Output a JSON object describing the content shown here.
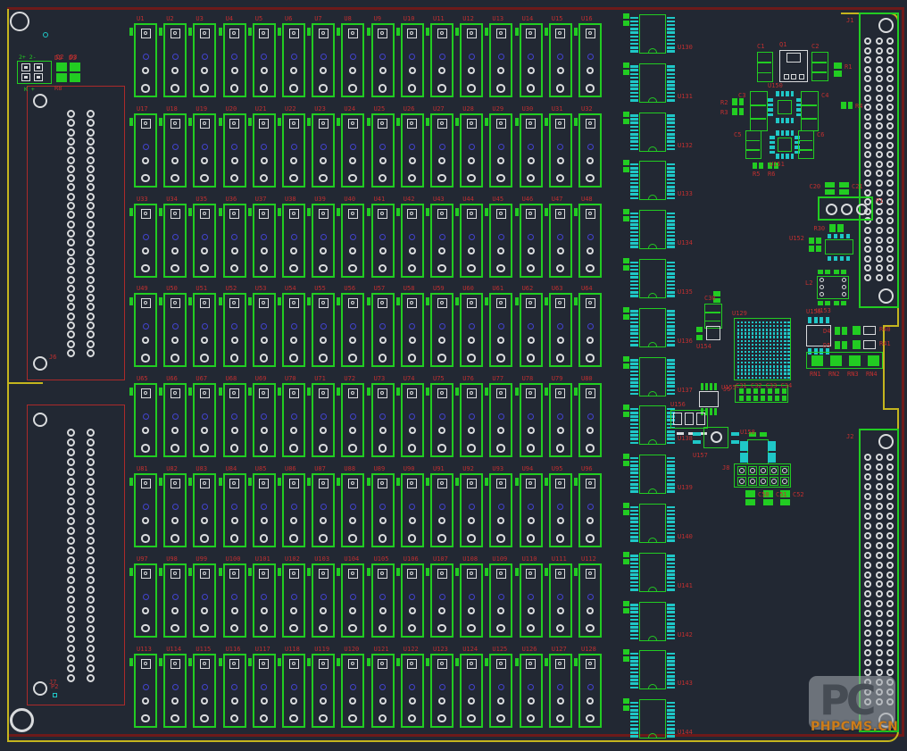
{
  "colors": {
    "bg": "#222833",
    "green": "#22cc22",
    "cyan": "#1fc7c7",
    "red_label": "#c03030",
    "maroon": "#6d1a1a",
    "yellow": "#c4b51e",
    "pad_white": "#d9dbdd",
    "pad_blue": "#4343cf",
    "outline_red": "#ab2a2a",
    "watermark_text": "#cd7d1a"
  },
  "watermark": {
    "logo": "PC",
    "text": "PHPCMS.CN"
  },
  "power_connector": {
    "ref": "J3",
    "top_label": "2+ 2-",
    "bottom_label": "K +"
  },
  "left_connectors": [
    {
      "ref": "J6"
    },
    {
      "ref": "J7"
    }
  ],
  "right_connectors": [
    {
      "ref": "J1"
    },
    {
      "ref": "J2"
    }
  ],
  "relay_grid": {
    "rows": 8,
    "cols": 16,
    "labels": [
      "U1",
      "U2",
      "U3",
      "U4",
      "U5",
      "U6",
      "U7",
      "U8",
      "U9",
      "U10",
      "U11",
      "U12",
      "U13",
      "U14",
      "U15",
      "U16",
      "U17",
      "U18",
      "U19",
      "U20",
      "U21",
      "U22",
      "U23",
      "U24",
      "U25",
      "U26",
      "U27",
      "U28",
      "U29",
      "U30",
      "U31",
      "U32",
      "U33",
      "U34",
      "U35",
      "U36",
      "U37",
      "U38",
      "U39",
      "U40",
      "U41",
      "U42",
      "U43",
      "U44",
      "U45",
      "U46",
      "U47",
      "U48",
      "U49",
      "U50",
      "U51",
      "U52",
      "U53",
      "U54",
      "U55",
      "U56",
      "U57",
      "U58",
      "U59",
      "U60",
      "U61",
      "U62",
      "U63",
      "U64",
      "U65",
      "U66",
      "U67",
      "U68",
      "U69",
      "U70",
      "U71",
      "U72",
      "U73",
      "U74",
      "U75",
      "U76",
      "U77",
      "U78",
      "U79",
      "U80",
      "U81",
      "U82",
      "U83",
      "U84",
      "U85",
      "U86",
      "U87",
      "U88",
      "U89",
      "U90",
      "U91",
      "U92",
      "U93",
      "U94",
      "U95",
      "U96",
      "U97",
      "U98",
      "U99",
      "U100",
      "U101",
      "U102",
      "U103",
      "U104",
      "U105",
      "U106",
      "U107",
      "U108",
      "U109",
      "U110",
      "U111",
      "U112",
      "U113",
      "U114",
      "U115",
      "U116",
      "U117",
      "U118",
      "U119",
      "U120",
      "U121",
      "U122",
      "U123",
      "U124",
      "U125",
      "U126",
      "U127",
      "U128"
    ]
  },
  "driver_ics": {
    "labels": [
      "U130",
      "U131",
      "U132",
      "U133",
      "U134",
      "U135",
      "U136",
      "U137",
      "U138",
      "U139",
      "U140",
      "U141",
      "U142",
      "U143",
      "U144"
    ]
  },
  "bga": {
    "ref": "U129",
    "below_caps": "C31 C32 C33 C34"
  },
  "parts_refs": {
    "d2": "D2",
    "d3": "D3",
    "r8": "R8",
    "c1": "C1",
    "q1": "Q1",
    "c2": "C2",
    "r1": "R1",
    "c3": "C3",
    "u30": "U150",
    "c4": "C4",
    "r2": "R2",
    "r3": "R3",
    "r4": "R4",
    "c5": "C5",
    "u31": "U151",
    "c6": "C6",
    "r5": "R5",
    "r6": "R6",
    "c20": "C20",
    "c21": "C21",
    "p1": "P1",
    "r30": "R30",
    "u45": "U152",
    "l2": "L2",
    "u46": "U153",
    "c30": "C30",
    "u2": "U154",
    "j5": "J5",
    "u3": "U155",
    "u4": "U156",
    "u6": "U157",
    "u7": "U158",
    "j8": "J8",
    "c50": "C50",
    "c51": "C51",
    "c52": "C52",
    "u48": "U159",
    "d4": "D4",
    "d5": "D5",
    "r40": "R40",
    "r41": "R41",
    "rn1": "RN1",
    "rn2": "RN2",
    "rn3": "RN3",
    "rn4": "RN4",
    "p2": "P2"
  }
}
